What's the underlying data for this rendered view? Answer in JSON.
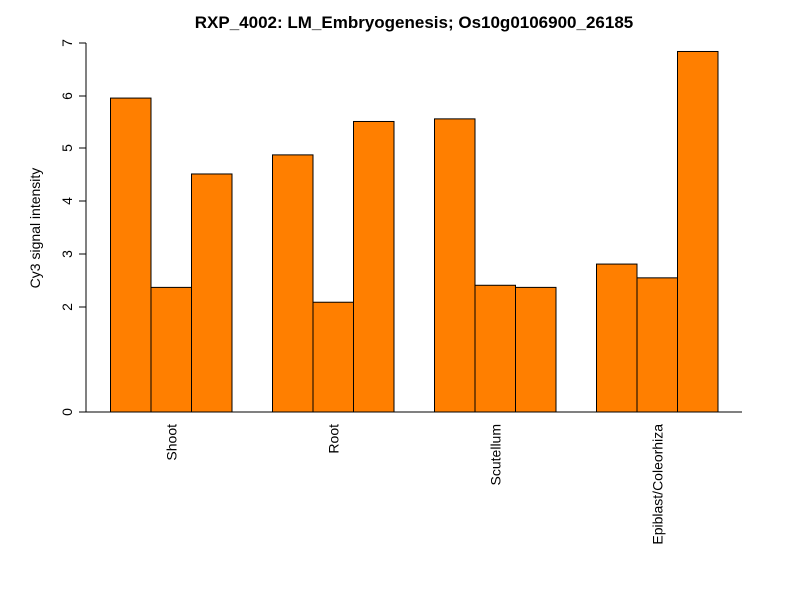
{
  "chart_data": {
    "type": "bar",
    "title": "RXP_4002: LM_Embryogenesis; Os10g0106900_26185",
    "xlabel": "",
    "ylabel": "Cy3 signal intensity",
    "categories": [
      "Shoot",
      "Root",
      "Scutellum",
      "Epiblast/Coleorhiza"
    ],
    "series": [
      {
        "values": [
          5.96,
          4.87,
          5.56,
          2.81
        ]
      },
      {
        "values": [
          2.37,
          2.09,
          2.41,
          2.55
        ]
      },
      {
        "values": [
          4.51,
          5.51,
          2.37,
          6.84
        ]
      }
    ],
    "yticks": [
      0,
      2,
      3,
      4,
      5,
      6,
      7
    ],
    "ylim": [
      0,
      7
    ],
    "bar_color": "#ff7f00",
    "grid": false,
    "legend": "none"
  }
}
